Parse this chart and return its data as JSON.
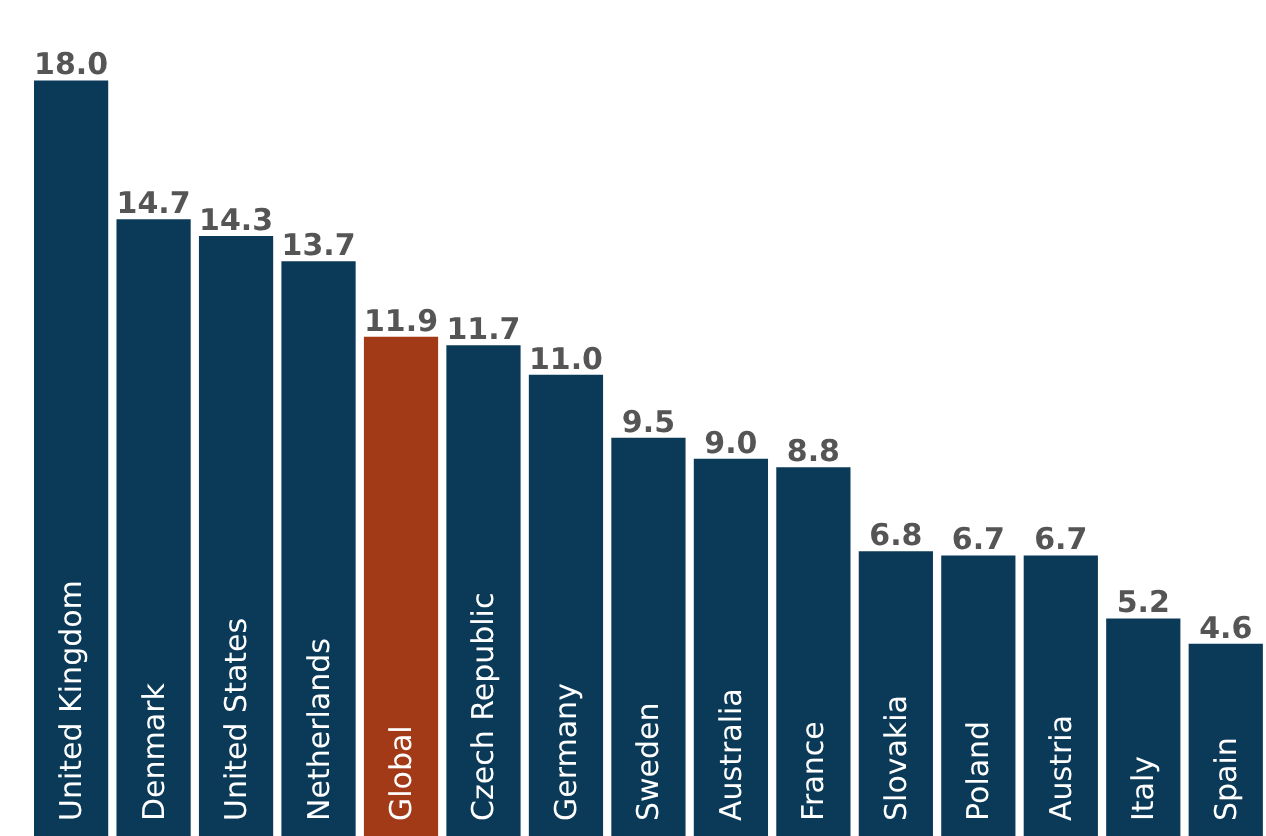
{
  "chart_data": {
    "type": "bar",
    "categories": [
      "United Kingdom",
      "Denmark",
      "United States",
      "Netherlands",
      "Global",
      "Czech Republic",
      "Germany",
      "Sweden",
      "Australia",
      "France",
      "Slovakia",
      "Poland",
      "Austria",
      "Italy",
      "Spain"
    ],
    "values": [
      18.0,
      14.7,
      14.3,
      13.7,
      11.9,
      11.7,
      11.0,
      9.5,
      9.0,
      8.8,
      6.8,
      6.7,
      6.7,
      5.2,
      4.6
    ],
    "value_labels": [
      "18.0",
      "14.7",
      "14.3",
      "13.7",
      "11.9",
      "11.7",
      "11.0",
      "9.5",
      "9.0",
      "8.8",
      "6.8",
      "6.7",
      "6.7",
      "5.2",
      "4.6"
    ],
    "colors": [
      "#0b3a58",
      "#0b3a58",
      "#0b3a58",
      "#0b3a58",
      "#a33a17",
      "#0b3a58",
      "#0b3a58",
      "#0b3a58",
      "#0b3a58",
      "#0b3a58",
      "#0b3a58",
      "#0b3a58",
      "#0b3a58",
      "#0b3a58",
      "#0b3a58"
    ]
  }
}
